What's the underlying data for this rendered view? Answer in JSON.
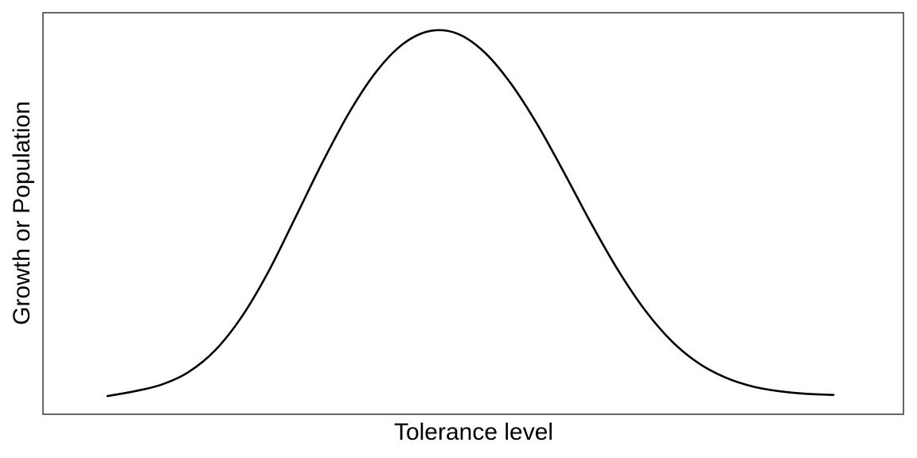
{
  "chart_data": {
    "type": "line",
    "title": "",
    "xlabel": "Tolerance level",
    "ylabel": "Growth or Population",
    "x_ticks": "none",
    "y_ticks": "none",
    "grid": false,
    "legend": "none",
    "colors": {
      "line": "#000000",
      "frame": "#333333",
      "background": "#ffffff"
    },
    "xlim": [
      -3.6,
      4.4
    ],
    "ylim": [
      -0.05,
      1.05
    ],
    "series": [
      {
        "x": [
          -3.0,
          -2.75,
          -2.5,
          -2.25,
          -2.0,
          -1.75,
          -1.5,
          -1.25,
          -1.0,
          -0.75,
          -0.5,
          -0.25,
          0.0,
          0.25,
          0.5,
          0.75,
          1.0,
          1.25,
          1.5,
          1.75,
          2.0,
          2.25,
          2.5,
          2.75,
          3.0,
          3.25,
          3.5,
          3.75
        ],
        "y": [
          0.0,
          0.013,
          0.031,
          0.065,
          0.125,
          0.218,
          0.343,
          0.491,
          0.641,
          0.778,
          0.889,
          0.965,
          1.0,
          0.993,
          0.943,
          0.856,
          0.742,
          0.609,
          0.471,
          0.343,
          0.234,
          0.149,
          0.089,
          0.05,
          0.026,
          0.013,
          0.006,
          0.003
        ]
      }
    ]
  }
}
